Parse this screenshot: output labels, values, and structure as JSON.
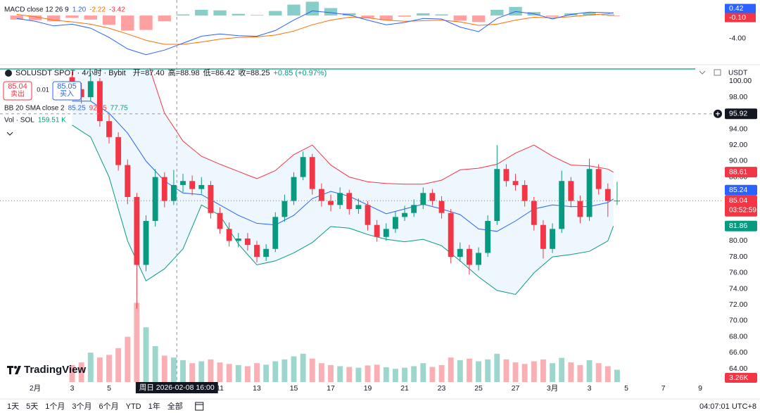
{
  "chart_data": {
    "type": "candlestick",
    "title": "SOLUSDT SPOT · 4小时 · Bybit",
    "ohlc_legend": [
      "开=87.40",
      "高=88.98",
      "低=86.42",
      "收=88.25",
      "+0.85 (+0.97%)"
    ],
    "trade_box": {
      "sell_price": "85.04",
      "sell": "卖出",
      "spread": "0.01",
      "buy_price": "85.05",
      "buy": "买入"
    },
    "bb_legend": {
      "name": "BB 20 SMA close 2",
      "values": [
        "85.25",
        "92.75",
        "77.75"
      ]
    },
    "vol_legend": {
      "name": "Vol · SOL",
      "value": "159.51 K"
    },
    "currency": "USDT",
    "up_color": "#089981",
    "down_color": "#f23645",
    "grid": false,
    "xlim": [
      -0.905,
      38.14
    ],
    "xticks": [
      {
        "value": 1,
        "label": "2月"
      },
      3,
      5,
      11,
      13,
      15,
      17,
      19,
      21,
      23,
      25,
      27,
      {
        "value": 29,
        "label": "3月"
      },
      {
        "value": 31,
        "label": "3"
      },
      {
        "value": 33,
        "label": "5"
      },
      {
        "value": 35,
        "label": "7"
      },
      {
        "value": 37,
        "label": "9"
      }
    ],
    "ylim": [
      62.33,
      101.62
    ],
    "yticks": [
      {
        "value": 64,
        "label": "64.00"
      },
      {
        "value": 66,
        "label": "66.00"
      },
      {
        "value": 68,
        "label": "68.00"
      },
      {
        "value": 70,
        "label": "70.00"
      },
      {
        "value": 72,
        "label": "72.00"
      },
      {
        "value": 74,
        "label": "74.00"
      },
      {
        "value": 76,
        "label": "76.00"
      },
      {
        "value": 78,
        "label": "78.00"
      },
      {
        "value": 80,
        "label": "80.00"
      },
      {
        "value": 88,
        "label": "88.00"
      },
      {
        "value": 90,
        "label": "90.00"
      },
      {
        "value": 92,
        "label": "92.00"
      },
      {
        "value": 94,
        "label": "94.00"
      },
      {
        "value": 98,
        "label": "98.00"
      },
      {
        "value": 100,
        "label": "100.00"
      }
    ],
    "x": [
      3,
      3.5,
      4,
      4.5,
      5,
      5.5,
      6,
      6.5,
      7,
      7.5,
      8,
      8.5,
      9,
      9.5,
      10,
      10.5,
      11,
      11.5,
      12,
      12.5,
      13,
      13.5,
      14,
      14.5,
      15,
      15.5,
      16,
      16.5,
      17,
      17.5,
      18,
      18.5,
      19,
      19.5,
      20,
      20.5,
      21,
      21.5,
      22,
      22.5,
      23,
      23.5,
      24,
      24.5,
      25,
      25.5,
      26,
      26.5,
      27,
      27.5,
      28,
      28.5,
      29,
      29.5,
      30,
      30.5,
      31,
      31.5,
      32,
      32.5
    ],
    "open": [
      100.5,
      99.0,
      98.0,
      100.0,
      95.0,
      93.0,
      89.5,
      85.5,
      77.0,
      82.5,
      88.0,
      85.0,
      87.0,
      87.5,
      86.5,
      87.0,
      83.5,
      81.5,
      80.0,
      80.3,
      79.5,
      78.0,
      79.0,
      83.0,
      85.0,
      88.0,
      90.5,
      86.5,
      85.0,
      84.5,
      86.0,
      84.0,
      84.5,
      82.0,
      80.5,
      81.5,
      83.0,
      83.5,
      84.5,
      86.0,
      85.0,
      83.5,
      78.0,
      79.0,
      77.0,
      78.5,
      82.5,
      89.0,
      87.5,
      87.0,
      85.0,
      82.0,
      79.0,
      81.5,
      87.5,
      85.0,
      83.0,
      89.0,
      86.5,
      85.0
    ],
    "high": [
      101.2,
      99.8,
      101.0,
      100.4,
      96.0,
      93.6,
      90.2,
      86.0,
      83.2,
      89.0,
      88.6,
      88.9,
      88.4,
      88.2,
      88.0,
      87.5,
      84.2,
      82.3,
      81.0,
      81.0,
      80.0,
      79.6,
      83.6,
      85.8,
      88.6,
      91.2,
      90.9,
      87.2,
      85.8,
      86.7,
      86.4,
      85.3,
      85.0,
      82.6,
      82.2,
      83.7,
      84.4,
      85.2,
      86.7,
      86.5,
      85.6,
      84.0,
      79.8,
      79.5,
      79.2,
      83.2,
      92.0,
      89.6,
      88.4,
      87.6,
      85.5,
      82.6,
      82.2,
      88.8,
      88.0,
      85.7,
      90.3,
      89.6,
      87.2,
      87.4
    ],
    "low": [
      98.4,
      97.2,
      97.5,
      94.3,
      92.2,
      88.8,
      84.6,
      71.5,
      76.2,
      81.8,
      84.2,
      84.5,
      86.1,
      85.7,
      85.9,
      82.8,
      80.9,
      79.3,
      79.2,
      78.8,
      77.3,
      77.5,
      78.6,
      82.4,
      84.5,
      87.6,
      85.8,
      84.3,
      83.7,
      84.0,
      83.3,
      83.4,
      81.3,
      79.9,
      80.0,
      81.0,
      82.5,
      83.0,
      84.0,
      84.4,
      82.8,
      77.2,
      77.4,
      75.8,
      76.3,
      78.0,
      82.0,
      86.8,
      86.3,
      84.3,
      81.3,
      77.8,
      78.5,
      81.0,
      84.2,
      82.2,
      82.5,
      85.8,
      83.0,
      84.5
    ],
    "close": [
      99.0,
      98.0,
      100.0,
      95.0,
      93.0,
      89.5,
      85.5,
      77.0,
      82.5,
      88.0,
      85.0,
      87.0,
      87.5,
      86.5,
      87.0,
      83.5,
      81.5,
      80.0,
      80.3,
      79.5,
      78.0,
      79.0,
      83.0,
      85.0,
      88.0,
      90.5,
      86.5,
      85.0,
      84.5,
      86.0,
      84.0,
      84.5,
      82.0,
      80.5,
      81.5,
      83.0,
      83.5,
      84.5,
      86.0,
      85.0,
      83.5,
      78.0,
      79.0,
      77.0,
      78.5,
      82.5,
      89.0,
      87.5,
      87.0,
      85.0,
      82.0,
      79.0,
      81.5,
      87.5,
      85.0,
      83.0,
      89.0,
      86.5,
      85.0,
      85.04
    ],
    "volume": [
      4.5,
      5.2,
      7.8,
      6.5,
      7.2,
      9.0,
      12.0,
      21.0,
      14.5,
      9.5,
      7.0,
      6.5,
      5.8,
      5.0,
      5.5,
      6.0,
      5.2,
      4.8,
      4.5,
      4.2,
      5.0,
      4.6,
      5.5,
      6.0,
      6.8,
      7.5,
      6.2,
      5.0,
      4.5,
      4.2,
      4.0,
      3.8,
      4.4,
      4.6,
      3.9,
      3.5,
      3.8,
      4.2,
      5.0,
      4.0,
      4.5,
      6.5,
      5.8,
      6.2,
      5.5,
      6.0,
      7.5,
      6.0,
      5.2,
      4.8,
      5.5,
      6.0,
      5.0,
      6.4,
      5.2,
      4.5,
      5.8,
      5.0,
      4.2,
      3.26
    ],
    "vlim": [
      0,
      22
    ],
    "volume_tag": "3.26K",
    "bollinger": {
      "x": [
        3,
        4,
        5,
        6,
        7,
        8,
        9,
        10,
        11,
        12,
        13,
        14,
        15,
        16,
        17,
        18,
        19,
        20,
        21,
        22,
        23,
        24,
        25,
        26,
        27,
        28,
        29,
        30,
        31,
        32,
        32.3
      ],
      "upper": [
        104,
        104,
        105,
        106,
        103,
        96,
        92.5,
        90.6,
        89.6,
        88.7,
        87.8,
        88.8,
        90.8,
        92,
        89.5,
        88,
        87.4,
        87.2,
        87.1,
        87.1,
        87.6,
        88.9,
        89.1,
        89.6,
        91,
        92,
        90.6,
        89.5,
        89.4,
        89,
        88.61
      ],
      "middle": [
        97.5,
        97.5,
        96,
        93.5,
        90,
        87.5,
        86,
        85.8,
        84.5,
        83.2,
        82.2,
        82,
        83.2,
        85.3,
        86.2,
        85.6,
        84.5,
        83.4,
        84,
        84.6,
        84,
        83.3,
        81.5,
        81.2,
        82.5,
        84,
        84.5,
        84.3,
        84.3,
        84.8,
        85.24
      ],
      "lower": [
        94.5,
        93,
        88,
        80,
        75,
        76.5,
        79,
        84.5,
        83.2,
        79.6,
        77,
        77.5,
        78.5,
        79.8,
        81.8,
        81.6,
        80.8,
        80.2,
        79.9,
        80.2,
        79.4,
        77.5,
        75.5,
        73.8,
        73.3,
        76,
        78,
        78.3,
        78.7,
        80,
        81.86
      ],
      "colors": {
        "upper": "#f23645",
        "middle": "#2962ff",
        "lower": "#089981",
        "fill": "#2196f3"
      }
    },
    "price_tags": [
      {
        "value": 88.61,
        "color": "#f23645"
      },
      {
        "value": 85.24,
        "color": "#2962ff"
      },
      {
        "value": 85.04,
        "color": "#f23645",
        "countdown": "03:52:59"
      },
      {
        "value": 81.86,
        "color": "#089981"
      }
    ],
    "crosshair": {
      "x": 8.667,
      "x_label": "周日 2026-02-08 16:00",
      "y": 95.92
    },
    "macd": {
      "legend": {
        "name": "MACD close 12 26 9",
        "values": [
          "1.20",
          "-2.22",
          "-3.42"
        ]
      },
      "ylim": [
        -8.3,
        2.7
      ],
      "yticks": [
        {
          "value": -4,
          "label": "-4.00"
        }
      ],
      "tags": [
        {
          "label": "0.42",
          "color": "#2962ff"
        },
        {
          "label": "-0.10",
          "color": "#f23645"
        }
      ],
      "x": [
        0,
        1,
        2,
        3,
        4,
        5,
        6,
        7,
        8,
        9,
        10,
        11,
        12,
        13,
        14,
        15,
        16,
        17,
        18,
        19,
        20,
        21,
        22,
        23,
        24,
        25,
        26,
        27,
        28,
        29,
        30,
        31,
        32,
        32.3
      ],
      "macd": [
        -0.5,
        -1.0,
        -1.8,
        -1.5,
        -2.2,
        -3.8,
        -5.8,
        -6.8,
        -6.0,
        -4.8,
        -3.6,
        -3.2,
        -3.5,
        -3.6,
        -2.6,
        -0.8,
        0.8,
        0.5,
        0.1,
        -0.8,
        -1.6,
        -1.2,
        -0.5,
        -0.6,
        -2.0,
        -2.8,
        -0.5,
        0.7,
        0.3,
        -0.6,
        0.2,
        0.6,
        0.5,
        0.42
      ],
      "signal": [
        0.2,
        -0.2,
        -0.8,
        -1.1,
        -1.5,
        -2.2,
        -3.2,
        -4.3,
        -5.0,
        -5.0,
        -4.6,
        -4.1,
        -3.8,
        -3.7,
        -3.4,
        -2.7,
        -1.6,
        -0.8,
        -0.3,
        -0.4,
        -0.8,
        -1.0,
        -0.9,
        -0.8,
        -1.1,
        -1.7,
        -1.5,
        -0.8,
        -0.3,
        -0.4,
        -0.2,
        0.1,
        0.3,
        0.52
      ],
      "histogram": [
        -0.7,
        -0.8,
        -1.0,
        -0.4,
        -0.7,
        -1.6,
        -2.6,
        -2.5,
        -1.0,
        0.2,
        1.0,
        0.9,
        0.3,
        0.1,
        0.8,
        1.9,
        2.4,
        1.3,
        0.4,
        -0.4,
        -0.8,
        -0.2,
        0.4,
        0.2,
        -0.9,
        -1.1,
        1.0,
        1.5,
        0.6,
        -0.2,
        0.4,
        0.5,
        0.2,
        -0.1
      ],
      "colors": {
        "macd": "#2962ff",
        "signal": "#ff6d00",
        "up": "#26a69a",
        "down": "#ff5252",
        "neg": "#f23645"
      }
    }
  },
  "branding": {
    "logo": "TradingView"
  },
  "toolbar": {
    "periods": [
      "1天",
      "5天",
      "1个月",
      "3个月",
      "6个月",
      "YTD",
      "1年",
      "全部"
    ],
    "clock": "04:07:01 UTC+8"
  }
}
